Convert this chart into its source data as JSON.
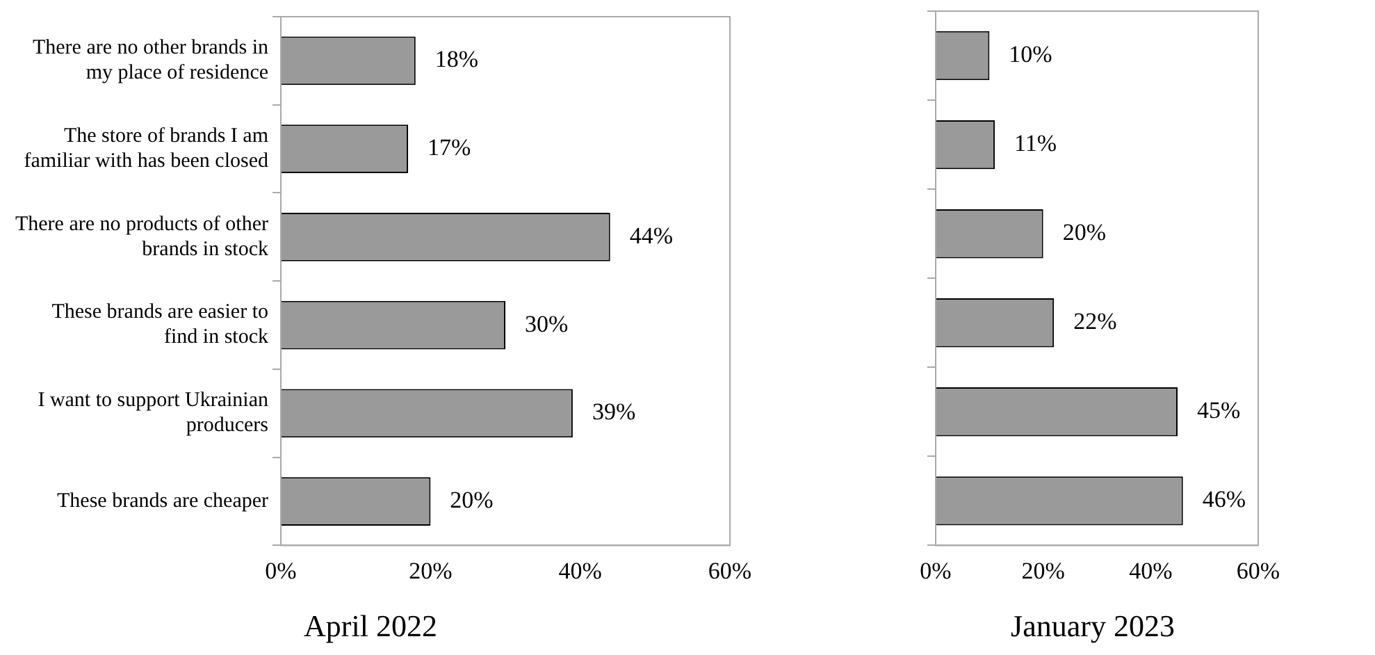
{
  "chart_data": [
    {
      "type": "bar",
      "orientation": "horizontal",
      "title": "April 2022",
      "categories": [
        "There are no other brands in my place of residence",
        "The store of brands I am familiar with has been closed",
        "There are no products of other brands in stock",
        "These brands are easier to find in stock",
        "I want to support Ukrainian producers",
        "These brands are cheaper"
      ],
      "values": [
        18,
        17,
        44,
        30,
        39,
        20
      ],
      "value_labels": [
        "18%",
        "17%",
        "44%",
        "30%",
        "39%",
        "20%"
      ],
      "color": "#9a9a9a",
      "xlim": [
        0,
        60
      ],
      "xticks": [
        {
          "value": 0,
          "label": "0%"
        },
        {
          "value": 20,
          "label": "20%"
        },
        {
          "value": 40,
          "label": "40%"
        },
        {
          "value": 60,
          "label": "60%"
        }
      ],
      "grid": false,
      "legend": false
    },
    {
      "type": "bar",
      "orientation": "horizontal",
      "title": "January 2023",
      "categories": [
        null,
        null,
        null,
        null,
        null,
        null
      ],
      "values": [
        10,
        11,
        20,
        22,
        45,
        46
      ],
      "value_labels": [
        "10%",
        "11%",
        "20%",
        "22%",
        "45%",
        "46%"
      ],
      "color": "#9a9a9a",
      "xlim": [
        0,
        60
      ],
      "xticks": [
        {
          "value": 0,
          "label": "0%"
        },
        {
          "value": 20,
          "label": "20%"
        },
        {
          "value": 40,
          "label": "40%"
        },
        {
          "value": 60,
          "label": "60%"
        }
      ],
      "tick_labels": "x",
      "grid": false,
      "legend": false
    }
  ]
}
